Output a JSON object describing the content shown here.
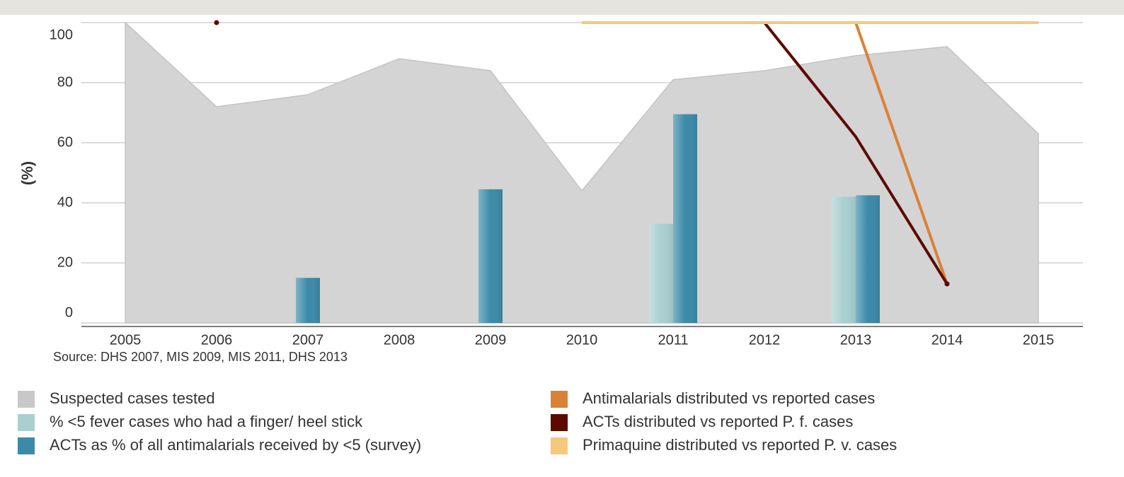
{
  "chart_data": {
    "type": "combo",
    "y_label": "(%)",
    "source": "Source: DHS 2007, MIS 2009, MIS 2011, DHS 2013",
    "categories": [
      "2005",
      "2006",
      "2007",
      "2008",
      "2009",
      "2010",
      "2011",
      "2012",
      "2013",
      "2014",
      "2015"
    ],
    "ylim": [
      0,
      100
    ],
    "yticks": [
      0,
      20,
      40,
      60,
      80,
      100
    ],
    "grid": true,
    "series": [
      {
        "name": "Suspected cases tested",
        "type": "area",
        "color": "#d4d4d4",
        "values": [
          100,
          72,
          76,
          88,
          84,
          44,
          81,
          84,
          89,
          92,
          63
        ]
      },
      {
        "name": "% <5 fever cases who had a finger/ heel stick",
        "type": "bar",
        "color": "#a9cfd1",
        "values": [
          null,
          null,
          null,
          null,
          null,
          null,
          33,
          null,
          42,
          null,
          null
        ]
      },
      {
        "name": "ACTs as % of all antimalarials received by <5 (survey)",
        "type": "bar",
        "color": "#3b8aa8",
        "values": [
          null,
          null,
          15,
          null,
          44.5,
          null,
          69.5,
          null,
          42.5,
          null,
          null
        ]
      },
      {
        "name": "Antimalarials distributed vs reported cases",
        "type": "line",
        "color": "#d98236",
        "values": [
          null,
          null,
          null,
          null,
          null,
          null,
          100,
          100,
          100,
          13,
          null
        ]
      },
      {
        "name": "ACTs distributed vs reported P. f. cases",
        "type": "line",
        "color": "#5c0a00",
        "values": [
          null,
          100,
          null,
          null,
          null,
          null,
          100,
          100,
          62,
          13,
          null
        ]
      },
      {
        "name": "Primaquine distributed vs reported P. v. cases",
        "type": "line",
        "color": "#f5c87a",
        "values": [
          null,
          null,
          null,
          null,
          null,
          100,
          100,
          100,
          100,
          100,
          100
        ]
      }
    ]
  }
}
